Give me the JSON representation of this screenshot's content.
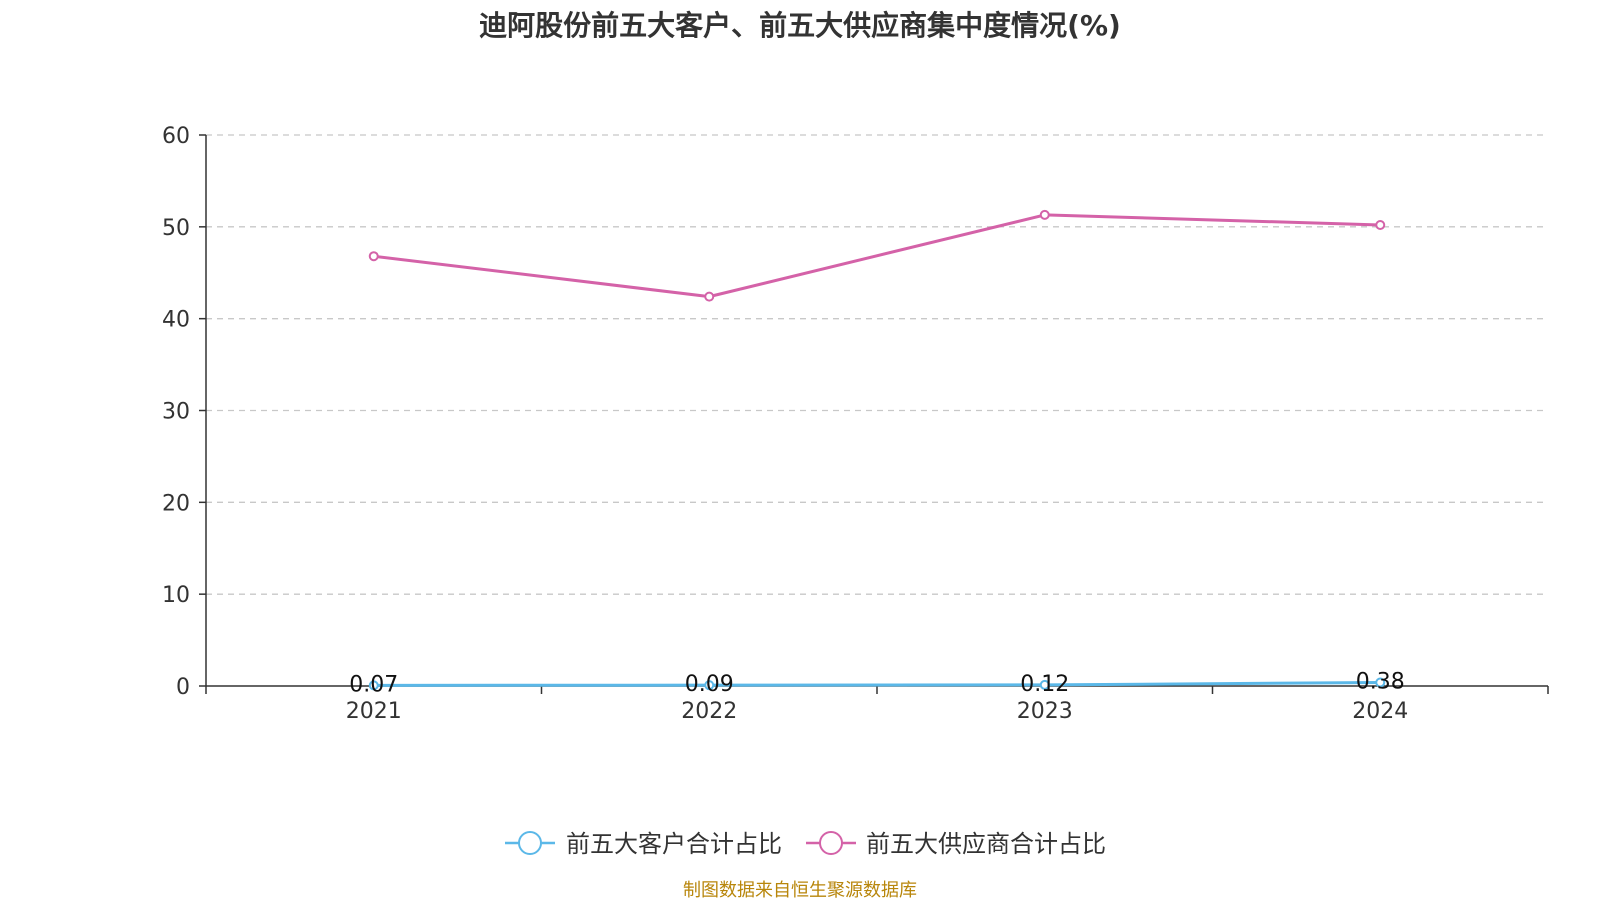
{
  "chart_data": {
    "type": "line",
    "title": "迪阿股份前五大客户、前五大供应商集中度情况(%)",
    "xlabel": "",
    "ylabel": "",
    "categories": [
      "2021",
      "2022",
      "2023",
      "2024"
    ],
    "ylim": [
      0,
      60
    ],
    "yticks": [
      0,
      10,
      20,
      30,
      40,
      50,
      60
    ],
    "grid": true,
    "legend_position": "bottom",
    "series": [
      {
        "name": "前五大客户合计占比",
        "color": "#5bb8e8",
        "values": [
          0.07,
          0.09,
          0.12,
          0.38
        ],
        "labels": [
          "0.07",
          "0.09",
          "0.12",
          "0.38"
        ]
      },
      {
        "name": "前五大供应商合计占比",
        "color": "#d462a8",
        "values": [
          46.8,
          42.4,
          51.3,
          50.2
        ]
      }
    ]
  },
  "source_note": "制图数据来自恒生聚源数据库"
}
